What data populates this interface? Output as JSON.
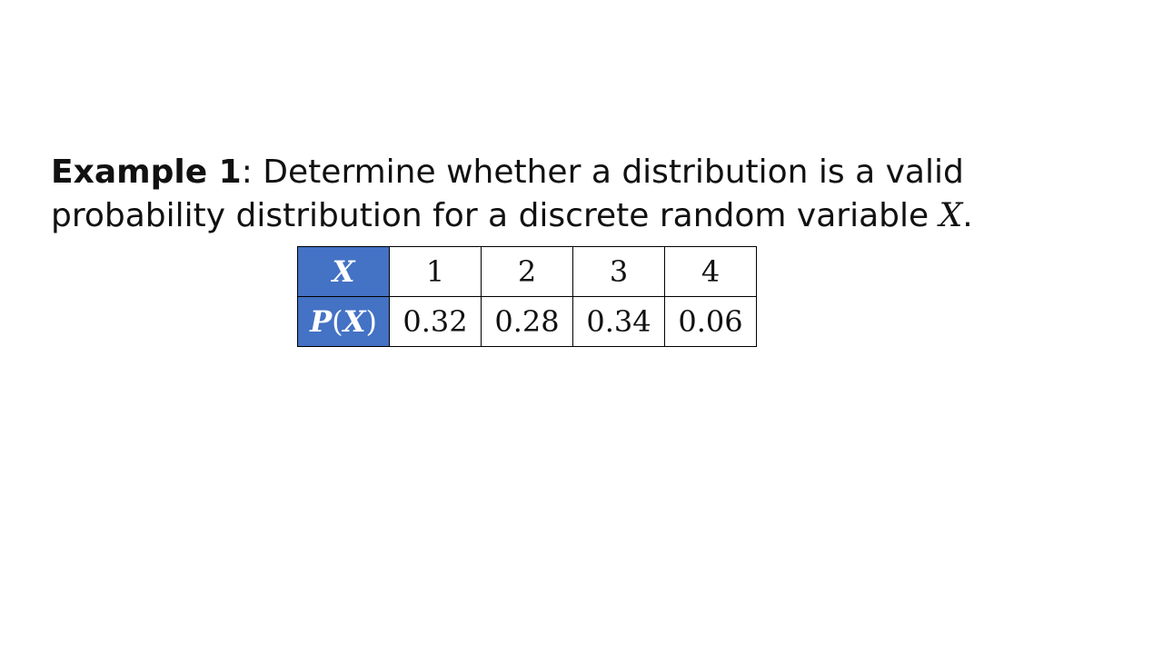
{
  "prompt": {
    "label": "Example 1",
    "text": ": Determine whether a distribution is a valid probability distribution for a discrete random variable ",
    "variable": "X",
    "end": "."
  },
  "table": {
    "row_x": {
      "header": "X",
      "values": [
        "1",
        "2",
        "3",
        "4"
      ]
    },
    "row_p": {
      "header_fn": "P",
      "header_open": "(",
      "header_var": "X",
      "header_close": ")",
      "values": [
        "0.32",
        "0.28",
        "0.34",
        "0.06"
      ]
    }
  },
  "colors": {
    "header_fill": "#4472c4",
    "header_text": "#ffffff"
  }
}
